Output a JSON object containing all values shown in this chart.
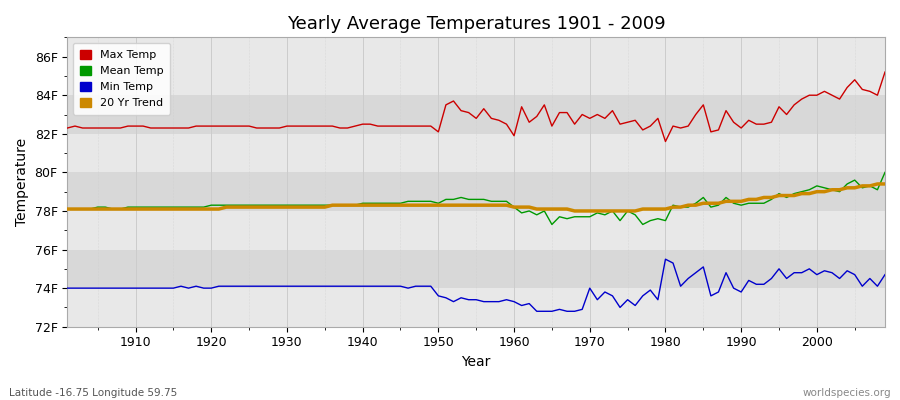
{
  "title": "Yearly Average Temperatures 1901 - 2009",
  "xlabel": "Year",
  "ylabel": "Temperature",
  "bottom_left_label": "Latitude -16.75 Longitude 59.75",
  "bottom_right_label": "worldspecies.org",
  "legend_entries": [
    "Max Temp",
    "Mean Temp",
    "Min Temp",
    "20 Yr Trend"
  ],
  "legend_colors": [
    "#cc0000",
    "#009900",
    "#0000cc",
    "#cc8800"
  ],
  "ylim": [
    72,
    87
  ],
  "yticks": [
    72,
    74,
    76,
    78,
    80,
    82,
    84,
    86
  ],
  "ytick_labels": [
    "72F",
    "74F",
    "76F",
    "78F",
    "80F",
    "82F",
    "84F",
    "86F"
  ],
  "xlim": [
    1901,
    2009
  ],
  "xticks": [
    1910,
    1920,
    1930,
    1940,
    1950,
    1960,
    1970,
    1980,
    1990,
    2000
  ],
  "fig_bg_color": "#ffffff",
  "band_colors": [
    "#e8e8e8",
    "#d8d8d8"
  ],
  "grid_color": "#cccccc",
  "max_temp_color": "#cc0000",
  "mean_temp_color": "#009900",
  "min_temp_color": "#0000cc",
  "trend_color": "#cc8800",
  "years": [
    1901,
    1902,
    1903,
    1904,
    1905,
    1906,
    1907,
    1908,
    1909,
    1910,
    1911,
    1912,
    1913,
    1914,
    1915,
    1916,
    1917,
    1918,
    1919,
    1920,
    1921,
    1922,
    1923,
    1924,
    1925,
    1926,
    1927,
    1928,
    1929,
    1930,
    1931,
    1932,
    1933,
    1934,
    1935,
    1936,
    1937,
    1938,
    1939,
    1940,
    1941,
    1942,
    1943,
    1944,
    1945,
    1946,
    1947,
    1948,
    1949,
    1950,
    1951,
    1952,
    1953,
    1954,
    1955,
    1956,
    1957,
    1958,
    1959,
    1960,
    1961,
    1962,
    1963,
    1964,
    1965,
    1966,
    1967,
    1968,
    1969,
    1970,
    1971,
    1972,
    1973,
    1974,
    1975,
    1976,
    1977,
    1978,
    1979,
    1980,
    1981,
    1982,
    1983,
    1984,
    1985,
    1986,
    1987,
    1988,
    1989,
    1990,
    1991,
    1992,
    1993,
    1994,
    1995,
    1996,
    1997,
    1998,
    1999,
    2000,
    2001,
    2002,
    2003,
    2004,
    2005,
    2006,
    2007,
    2008,
    2009
  ],
  "max_temp": [
    82.3,
    82.4,
    82.3,
    82.3,
    82.3,
    82.3,
    82.3,
    82.3,
    82.4,
    82.4,
    82.4,
    82.3,
    82.3,
    82.3,
    82.3,
    82.3,
    82.3,
    82.4,
    82.4,
    82.4,
    82.4,
    82.4,
    82.4,
    82.4,
    82.4,
    82.3,
    82.3,
    82.3,
    82.3,
    82.4,
    82.4,
    82.4,
    82.4,
    82.4,
    82.4,
    82.4,
    82.3,
    82.3,
    82.4,
    82.5,
    82.5,
    82.4,
    82.4,
    82.4,
    82.4,
    82.4,
    82.4,
    82.4,
    82.4,
    82.1,
    83.5,
    83.7,
    83.2,
    83.1,
    82.8,
    83.3,
    82.8,
    82.7,
    82.5,
    81.9,
    83.4,
    82.6,
    82.9,
    83.5,
    82.4,
    83.1,
    83.1,
    82.5,
    83.0,
    82.8,
    83.0,
    82.8,
    83.2,
    82.5,
    82.6,
    82.7,
    82.2,
    82.4,
    82.8,
    81.6,
    82.4,
    82.3,
    82.4,
    83.0,
    83.5,
    82.1,
    82.2,
    83.2,
    82.6,
    82.3,
    82.7,
    82.5,
    82.5,
    82.6,
    83.4,
    83.0,
    83.5,
    83.8,
    84.0,
    84.0,
    84.2,
    84.0,
    83.8,
    84.4,
    84.8,
    84.3,
    84.2,
    84.0,
    85.2
  ],
  "mean_temp": [
    78.1,
    78.1,
    78.1,
    78.1,
    78.2,
    78.2,
    78.1,
    78.1,
    78.2,
    78.2,
    78.2,
    78.2,
    78.2,
    78.2,
    78.2,
    78.2,
    78.2,
    78.2,
    78.2,
    78.3,
    78.3,
    78.3,
    78.3,
    78.3,
    78.3,
    78.3,
    78.3,
    78.3,
    78.3,
    78.3,
    78.3,
    78.3,
    78.3,
    78.3,
    78.3,
    78.3,
    78.3,
    78.3,
    78.3,
    78.4,
    78.4,
    78.4,
    78.4,
    78.4,
    78.4,
    78.5,
    78.5,
    78.5,
    78.5,
    78.4,
    78.6,
    78.6,
    78.7,
    78.6,
    78.6,
    78.6,
    78.5,
    78.5,
    78.5,
    78.2,
    77.9,
    78.0,
    77.8,
    78.0,
    77.3,
    77.7,
    77.6,
    77.7,
    77.7,
    77.7,
    77.9,
    77.8,
    78.0,
    77.5,
    78.0,
    77.8,
    77.3,
    77.5,
    77.6,
    77.5,
    78.3,
    78.2,
    78.2,
    78.4,
    78.7,
    78.2,
    78.3,
    78.7,
    78.4,
    78.3,
    78.4,
    78.4,
    78.4,
    78.6,
    78.9,
    78.7,
    78.9,
    79.0,
    79.1,
    79.3,
    79.2,
    79.1,
    79.0,
    79.4,
    79.6,
    79.2,
    79.3,
    79.1,
    80.0
  ],
  "min_temp": [
    74.0,
    74.0,
    74.0,
    74.0,
    74.0,
    74.0,
    74.0,
    74.0,
    74.0,
    74.0,
    74.0,
    74.0,
    74.0,
    74.0,
    74.0,
    74.1,
    74.0,
    74.1,
    74.0,
    74.0,
    74.1,
    74.1,
    74.1,
    74.1,
    74.1,
    74.1,
    74.1,
    74.1,
    74.1,
    74.1,
    74.1,
    74.1,
    74.1,
    74.1,
    74.1,
    74.1,
    74.1,
    74.1,
    74.1,
    74.1,
    74.1,
    74.1,
    74.1,
    74.1,
    74.1,
    74.0,
    74.1,
    74.1,
    74.1,
    73.6,
    73.5,
    73.3,
    73.5,
    73.4,
    73.4,
    73.3,
    73.3,
    73.3,
    73.4,
    73.3,
    73.1,
    73.2,
    72.8,
    72.8,
    72.8,
    72.9,
    72.8,
    72.8,
    72.9,
    74.0,
    73.4,
    73.8,
    73.6,
    73.0,
    73.4,
    73.1,
    73.6,
    73.9,
    73.4,
    75.5,
    75.3,
    74.1,
    74.5,
    74.8,
    75.1,
    73.6,
    73.8,
    74.8,
    74.0,
    73.8,
    74.4,
    74.2,
    74.2,
    74.5,
    75.0,
    74.5,
    74.8,
    74.8,
    75.0,
    74.7,
    74.9,
    74.8,
    74.5,
    74.9,
    74.7,
    74.1,
    74.5,
    74.1,
    74.7
  ],
  "trend": [
    78.1,
    78.1,
    78.1,
    78.1,
    78.1,
    78.1,
    78.1,
    78.1,
    78.1,
    78.1,
    78.1,
    78.1,
    78.1,
    78.1,
    78.1,
    78.1,
    78.1,
    78.1,
    78.1,
    78.1,
    78.1,
    78.2,
    78.2,
    78.2,
    78.2,
    78.2,
    78.2,
    78.2,
    78.2,
    78.2,
    78.2,
    78.2,
    78.2,
    78.2,
    78.2,
    78.3,
    78.3,
    78.3,
    78.3,
    78.3,
    78.3,
    78.3,
    78.3,
    78.3,
    78.3,
    78.3,
    78.3,
    78.3,
    78.3,
    78.3,
    78.3,
    78.3,
    78.3,
    78.3,
    78.3,
    78.3,
    78.3,
    78.3,
    78.3,
    78.2,
    78.2,
    78.2,
    78.1,
    78.1,
    78.1,
    78.1,
    78.1,
    78.0,
    78.0,
    78.0,
    78.0,
    78.0,
    78.0,
    78.0,
    78.0,
    78.0,
    78.1,
    78.1,
    78.1,
    78.1,
    78.2,
    78.2,
    78.3,
    78.3,
    78.4,
    78.4,
    78.4,
    78.5,
    78.5,
    78.5,
    78.6,
    78.6,
    78.7,
    78.7,
    78.8,
    78.8,
    78.8,
    78.9,
    78.9,
    79.0,
    79.0,
    79.1,
    79.1,
    79.2,
    79.2,
    79.3,
    79.3,
    79.4,
    79.4
  ]
}
